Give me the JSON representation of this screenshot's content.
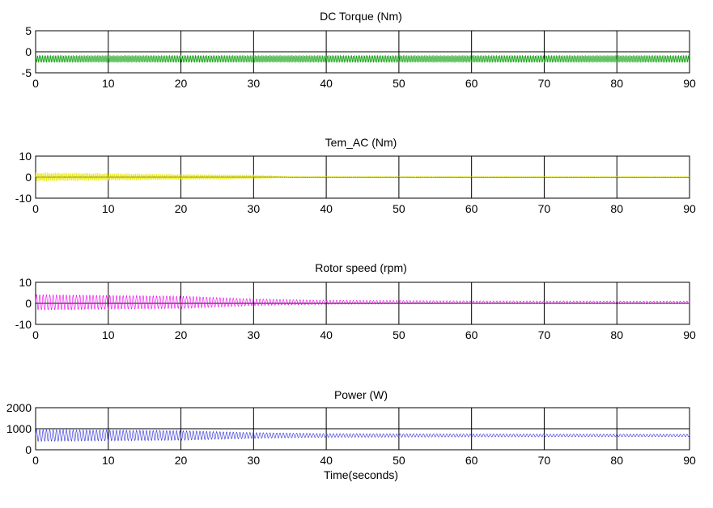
{
  "chart_data": [
    {
      "type": "line",
      "title": "DC Torque (Nm)",
      "xlabel": "",
      "ylabel": "",
      "xlim": [
        0,
        90
      ],
      "ylim": [
        -5,
        5
      ],
      "xticks": [
        0,
        10,
        20,
        30,
        40,
        50,
        60,
        70,
        80,
        90
      ],
      "yticks": [
        5,
        0,
        -5
      ],
      "grid": "vertical",
      "series": [
        {
          "color": "#009900",
          "mean": -1.7,
          "amplitude": [
            [
              0,
              0.9
            ],
            [
              90,
              0.9
            ]
          ],
          "period": 0.3
        }
      ]
    },
    {
      "type": "line",
      "title": "Tem_AC (Nm)",
      "xlabel": "",
      "ylabel": "",
      "xlim": [
        0,
        90
      ],
      "ylim": [
        -10,
        10
      ],
      "xticks": [
        0,
        10,
        20,
        30,
        40,
        50,
        60,
        70,
        80,
        90
      ],
      "yticks": [
        10,
        0,
        -10
      ],
      "grid": "vertical",
      "series": [
        {
          "color": "#e6e600",
          "mean": 0.1,
          "amplitude": [
            [
              0,
              2.2
            ],
            [
              30,
              1.0
            ],
            [
              35,
              0.15
            ],
            [
              90,
              0.1
            ]
          ],
          "period": 0.25
        }
      ]
    },
    {
      "type": "line",
      "title": "Rotor speed (rpm)",
      "xlabel": "",
      "ylabel": "",
      "xlim": [
        0,
        90
      ],
      "ylim": [
        -10,
        10
      ],
      "xticks": [
        0,
        10,
        20,
        30,
        40,
        50,
        60,
        70,
        80,
        90
      ],
      "yticks": [
        10,
        0,
        -10
      ],
      "grid": "vertical",
      "series": [
        {
          "color": "#ee00ee",
          "mean": 0.5,
          "amplitude": [
            [
              0,
              3.7
            ],
            [
              20,
              3.0
            ],
            [
              30,
              1.6
            ],
            [
              40,
              1.0
            ],
            [
              60,
              0.7
            ],
            [
              90,
              0.6
            ]
          ],
          "period": 1.0
        }
      ]
    },
    {
      "type": "line",
      "title": "Power (W)",
      "xlabel": "Time(seconds)",
      "ylabel": "",
      "xlim": [
        0,
        90
      ],
      "ylim": [
        0,
        2000
      ],
      "xticks": [
        0,
        10,
        20,
        30,
        40,
        50,
        60,
        70,
        80,
        90
      ],
      "yticks": [
        2000,
        1000,
        0
      ],
      "grid": "vertical",
      "hline": 1000,
      "series": [
        {
          "color": "#2a2ad6",
          "mean": 680,
          "amplitude": [
            [
              0,
              280
            ],
            [
              20,
              230
            ],
            [
              30,
              140
            ],
            [
              40,
              90
            ],
            [
              60,
              70
            ],
            [
              90,
              60
            ]
          ],
          "period": 1.0
        }
      ]
    }
  ]
}
